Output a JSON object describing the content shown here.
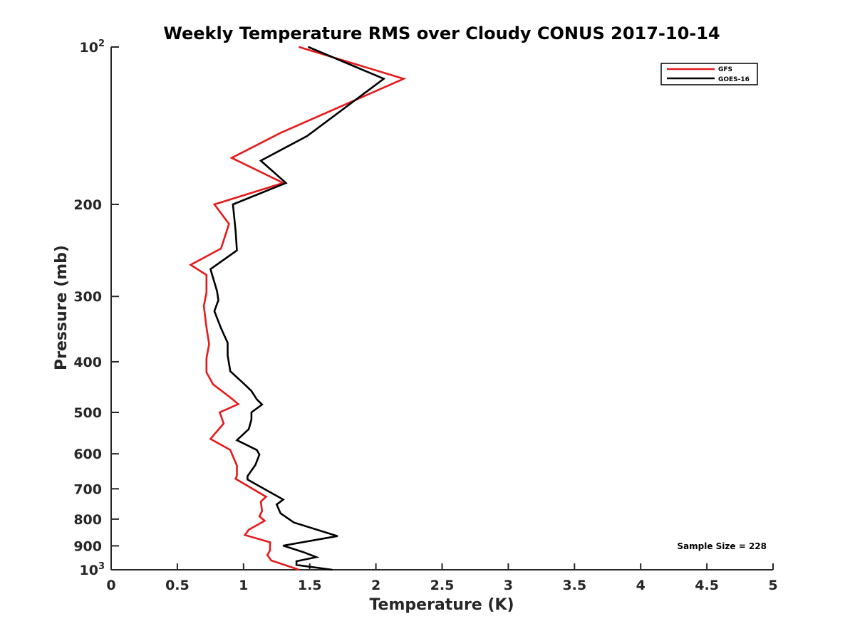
{
  "chart_data": {
    "type": "line",
    "title": "Weekly Temperature RMS over Cloudy CONUS 2017-10-14",
    "xlabel": "Temperature (K)",
    "ylabel": "Pressure (mb)",
    "xlim": [
      0,
      5
    ],
    "ylim": [
      100,
      1000
    ],
    "y_scale": "log",
    "y_reversed": true,
    "grid": false,
    "legend_position": "top-right",
    "x_ticks": [
      {
        "value": 0,
        "label": "0"
      },
      {
        "value": 0.5,
        "label": "0.5"
      },
      {
        "value": 1,
        "label": "1"
      },
      {
        "value": 1.5,
        "label": "1.5"
      },
      {
        "value": 2,
        "label": "2"
      },
      {
        "value": 2.5,
        "label": "2.5"
      },
      {
        "value": 3,
        "label": "3"
      },
      {
        "value": 3.5,
        "label": "3.5"
      },
      {
        "value": 4,
        "label": "4"
      },
      {
        "value": 4.5,
        "label": "4.5"
      },
      {
        "value": 5,
        "label": "5"
      }
    ],
    "y_ticks": [
      {
        "value": 100,
        "base": "10",
        "exp": "2"
      },
      {
        "value": 200,
        "label": "200"
      },
      {
        "value": 300,
        "label": "300"
      },
      {
        "value": 400,
        "label": "400"
      },
      {
        "value": 500,
        "label": "500"
      },
      {
        "value": 600,
        "label": "600"
      },
      {
        "value": 700,
        "label": "700"
      },
      {
        "value": 800,
        "label": "800"
      },
      {
        "value": 900,
        "label": "900"
      },
      {
        "value": 1000,
        "base": "10",
        "exp": "3"
      }
    ],
    "series": [
      {
        "name": "GFS",
        "color": "#e41a1c",
        "points": [
          {
            "x": 1.42,
            "y": 100
          },
          {
            "x": 2.21,
            "y": 115
          },
          {
            "x": 1.28,
            "y": 146
          },
          {
            "x": 0.91,
            "y": 163
          },
          {
            "x": 1.3,
            "y": 182
          },
          {
            "x": 0.78,
            "y": 200
          },
          {
            "x": 0.89,
            "y": 218
          },
          {
            "x": 0.83,
            "y": 243
          },
          {
            "x": 0.6,
            "y": 261
          },
          {
            "x": 0.72,
            "y": 273
          },
          {
            "x": 0.72,
            "y": 295
          },
          {
            "x": 0.7,
            "y": 313
          },
          {
            "x": 0.72,
            "y": 344
          },
          {
            "x": 0.74,
            "y": 370
          },
          {
            "x": 0.72,
            "y": 394
          },
          {
            "x": 0.72,
            "y": 419
          },
          {
            "x": 0.77,
            "y": 442
          },
          {
            "x": 0.9,
            "y": 468
          },
          {
            "x": 0.96,
            "y": 482
          },
          {
            "x": 0.82,
            "y": 500
          },
          {
            "x": 0.85,
            "y": 525
          },
          {
            "x": 0.75,
            "y": 562
          },
          {
            "x": 0.9,
            "y": 590
          },
          {
            "x": 0.95,
            "y": 632
          },
          {
            "x": 0.95,
            "y": 660
          },
          {
            "x": 0.94,
            "y": 670
          },
          {
            "x": 1.17,
            "y": 725
          },
          {
            "x": 1.13,
            "y": 741
          },
          {
            "x": 1.14,
            "y": 772
          },
          {
            "x": 1.12,
            "y": 790
          },
          {
            "x": 1.16,
            "y": 806
          },
          {
            "x": 1.04,
            "y": 838
          },
          {
            "x": 1.01,
            "y": 858
          },
          {
            "x": 1.2,
            "y": 886
          },
          {
            "x": 1.2,
            "y": 918
          },
          {
            "x": 1.18,
            "y": 937
          },
          {
            "x": 1.21,
            "y": 960
          },
          {
            "x": 1.42,
            "y": 1000
          }
        ]
      },
      {
        "name": "GOES-16",
        "color": "#000000",
        "points": [
          {
            "x": 1.49,
            "y": 100
          },
          {
            "x": 2.06,
            "y": 115
          },
          {
            "x": 1.48,
            "y": 148
          },
          {
            "x": 1.13,
            "y": 165
          },
          {
            "x": 1.32,
            "y": 182
          },
          {
            "x": 0.92,
            "y": 200
          },
          {
            "x": 0.94,
            "y": 225
          },
          {
            "x": 0.95,
            "y": 245
          },
          {
            "x": 0.75,
            "y": 266
          },
          {
            "x": 0.8,
            "y": 293
          },
          {
            "x": 0.81,
            "y": 305
          },
          {
            "x": 0.78,
            "y": 320
          },
          {
            "x": 0.83,
            "y": 345
          },
          {
            "x": 0.88,
            "y": 368
          },
          {
            "x": 0.88,
            "y": 389
          },
          {
            "x": 0.9,
            "y": 417
          },
          {
            "x": 1.0,
            "y": 440
          },
          {
            "x": 1.06,
            "y": 455
          },
          {
            "x": 1.1,
            "y": 472
          },
          {
            "x": 1.14,
            "y": 483
          },
          {
            "x": 1.06,
            "y": 500
          },
          {
            "x": 1.06,
            "y": 516
          },
          {
            "x": 1.04,
            "y": 538
          },
          {
            "x": 0.95,
            "y": 565
          },
          {
            "x": 1.1,
            "y": 590
          },
          {
            "x": 1.12,
            "y": 602
          },
          {
            "x": 1.09,
            "y": 630
          },
          {
            "x": 1.03,
            "y": 662
          },
          {
            "x": 1.03,
            "y": 672
          },
          {
            "x": 1.22,
            "y": 715
          },
          {
            "x": 1.3,
            "y": 734
          },
          {
            "x": 1.25,
            "y": 750
          },
          {
            "x": 1.28,
            "y": 780
          },
          {
            "x": 1.38,
            "y": 812
          },
          {
            "x": 1.71,
            "y": 862
          },
          {
            "x": 1.3,
            "y": 899
          },
          {
            "x": 1.45,
            "y": 925
          },
          {
            "x": 1.55,
            "y": 946
          },
          {
            "x": 1.4,
            "y": 963
          },
          {
            "x": 1.4,
            "y": 979
          },
          {
            "x": 1.67,
            "y": 1000
          }
        ]
      }
    ],
    "annotations": [
      {
        "text": "Sample Size = 228",
        "position": "bottom-right"
      }
    ]
  }
}
